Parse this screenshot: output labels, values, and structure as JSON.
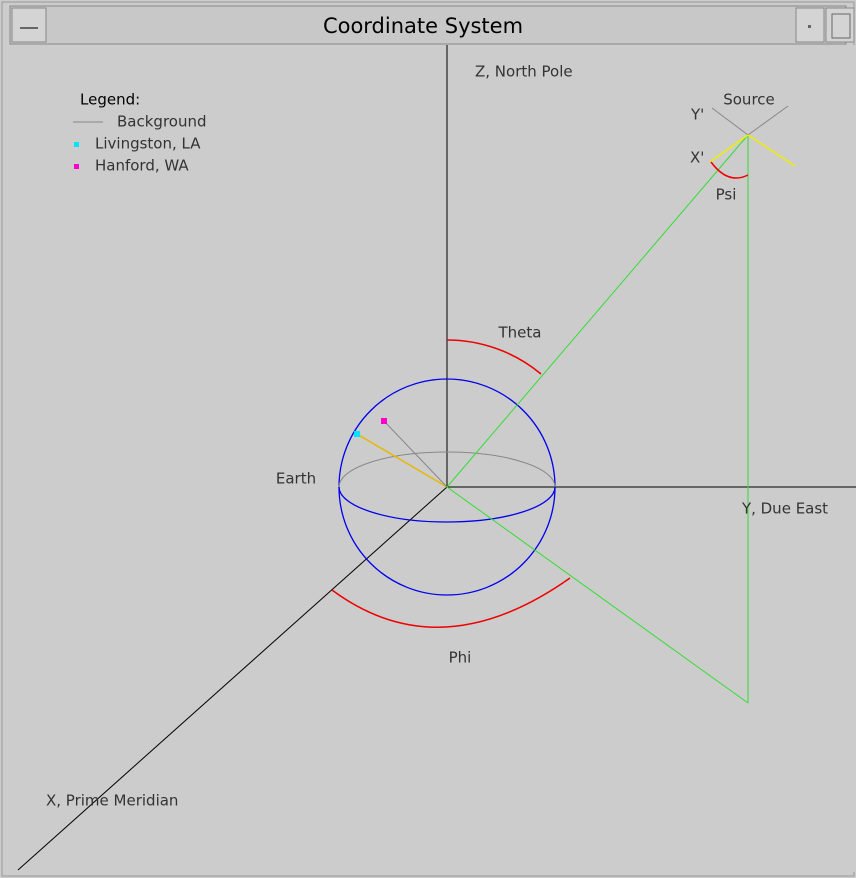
{
  "window": {
    "title": "Coordinate System"
  },
  "legend": {
    "title": "Legend:",
    "items": [
      "Background",
      "Livingston, LA",
      "Hanford, WA"
    ]
  },
  "labels": {
    "z_axis": "Z, North Pole",
    "y_axis": "Y, Due East",
    "x_axis": "X, Prime Meridian",
    "source": "Source",
    "y_prime": "Y'",
    "x_prime": "X'",
    "psi": "Psi",
    "theta": "Theta",
    "phi": "Phi",
    "earth": "Earth"
  }
}
